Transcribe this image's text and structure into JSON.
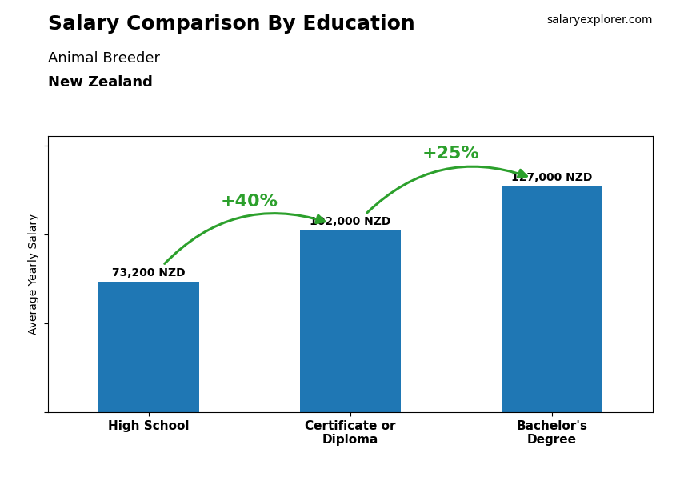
{
  "chart_data": {
    "type": "bar",
    "title": "Salary Comparison By Education",
    "subtitle": "Animal Breeder",
    "annotations": [
      "New Zealand",
      "salaryexplorer.com"
    ],
    "ylabel": "Average Yearly Salary",
    "categories": [
      "High School",
      "Certificate or\nDiploma",
      "Bachelor's\nDegree"
    ],
    "values": [
      73200,
      102000,
      127000
    ],
    "value_labels": [
      "73,200 NZD",
      "102,000 NZD",
      "127,000 NZD"
    ],
    "data_labels": true,
    "change_labels": [
      "+40%",
      "+25%"
    ],
    "ylim": [
      0,
      155400
    ],
    "yticks": [
      0,
      50000,
      100000,
      150000
    ],
    "tick_labels": "x",
    "grid": false
  }
}
